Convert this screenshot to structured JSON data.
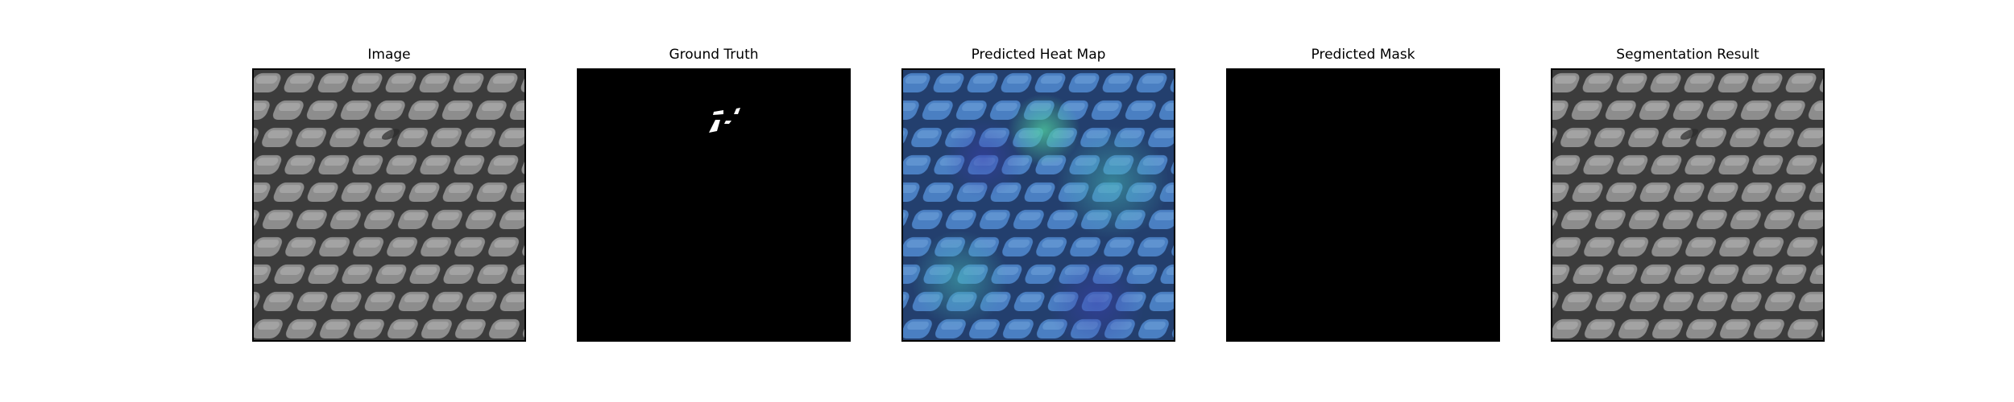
{
  "figure": {
    "panels": [
      {
        "id": "image",
        "title": "Image",
        "kind": "grayscale-mesh",
        "color": "#8a8a8a"
      },
      {
        "id": "ground-truth",
        "title": "Ground Truth",
        "kind": "binary-mask",
        "color": "#000000"
      },
      {
        "id": "predicted-heat-map",
        "title": "Predicted Heat Map",
        "kind": "heatmap-overlay",
        "color": "#3a7fc4"
      },
      {
        "id": "predicted-mask",
        "title": "Predicted Mask",
        "kind": "binary-mask-empty",
        "color": "#000000"
      },
      {
        "id": "segmentation-result",
        "title": "Segmentation Result",
        "kind": "grayscale-mesh",
        "color": "#8a8a8a"
      }
    ]
  }
}
